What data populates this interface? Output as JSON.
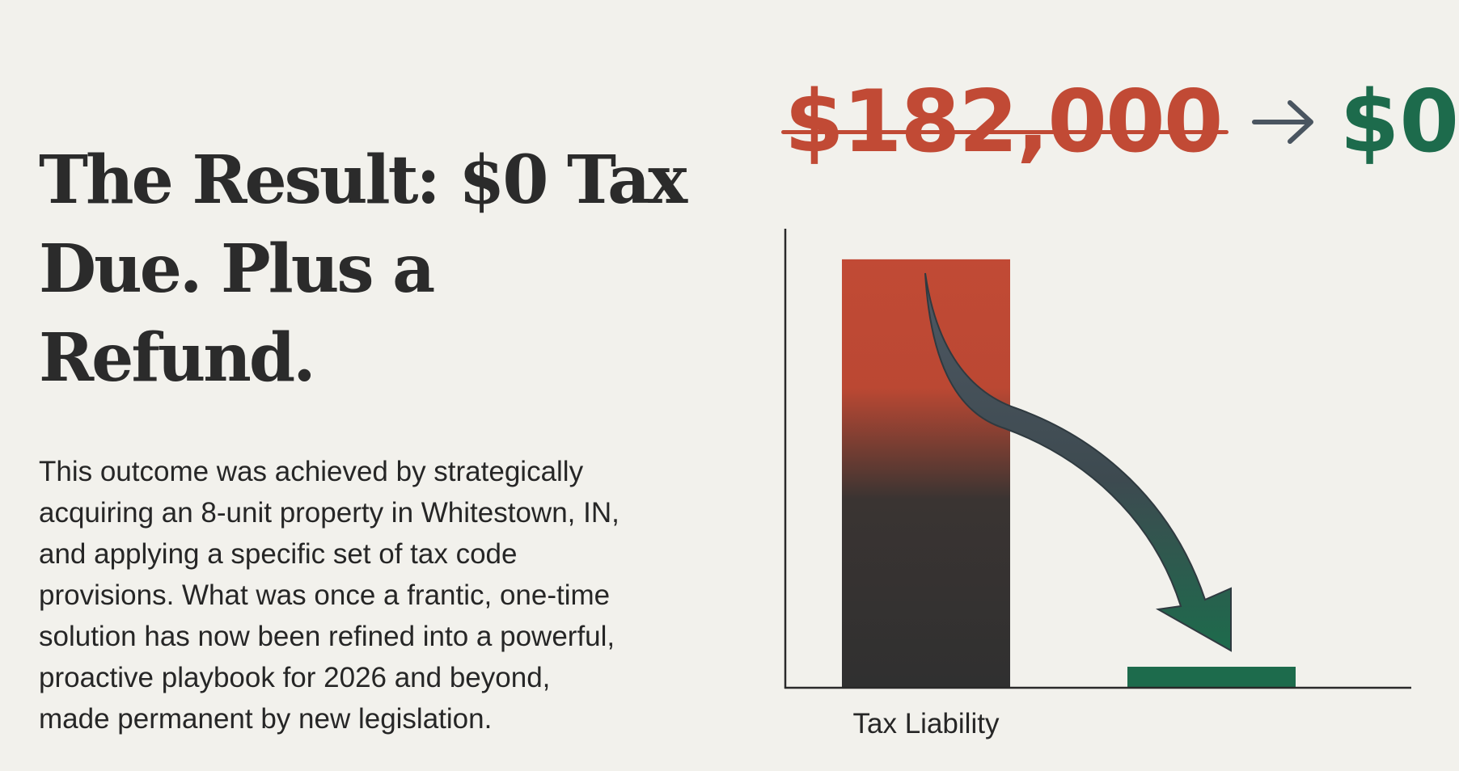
{
  "headline": {
    "line1": "The Result: $0 Tax",
    "line2": "Due. Plus a Refund."
  },
  "body": {
    "lines": [
      "This outcome was achieved by strategically",
      "acquiring an 8-unit property in Whitestown, IN,",
      "and applying a specific set of tax code",
      "provisions. What was once a frantic, one-time",
      "solution has now been refined into a powerful,",
      "proactive playbook for 2026 and beyond,",
      "made permanent by new legislation."
    ]
  },
  "comparison": {
    "old_amount": "$182,000",
    "arrow_icon": "arrow-right-icon",
    "new_amount": "$0"
  },
  "colors": {
    "background": "#f2f1ec",
    "old_red": "#c14a35",
    "dark": "#333333",
    "new_green": "#1d6b4c",
    "arrow": "#4a5560"
  },
  "chart_data": {
    "type": "bar",
    "categories": [
      "Tax Liability",
      ""
    ],
    "values": [
      182000,
      0
    ],
    "x_labels_shown": [
      "Tax Liability"
    ],
    "ylim": [
      0,
      195000
    ],
    "grid": false,
    "legend": "none",
    "annotation": "curved-down-arrow-icon"
  }
}
